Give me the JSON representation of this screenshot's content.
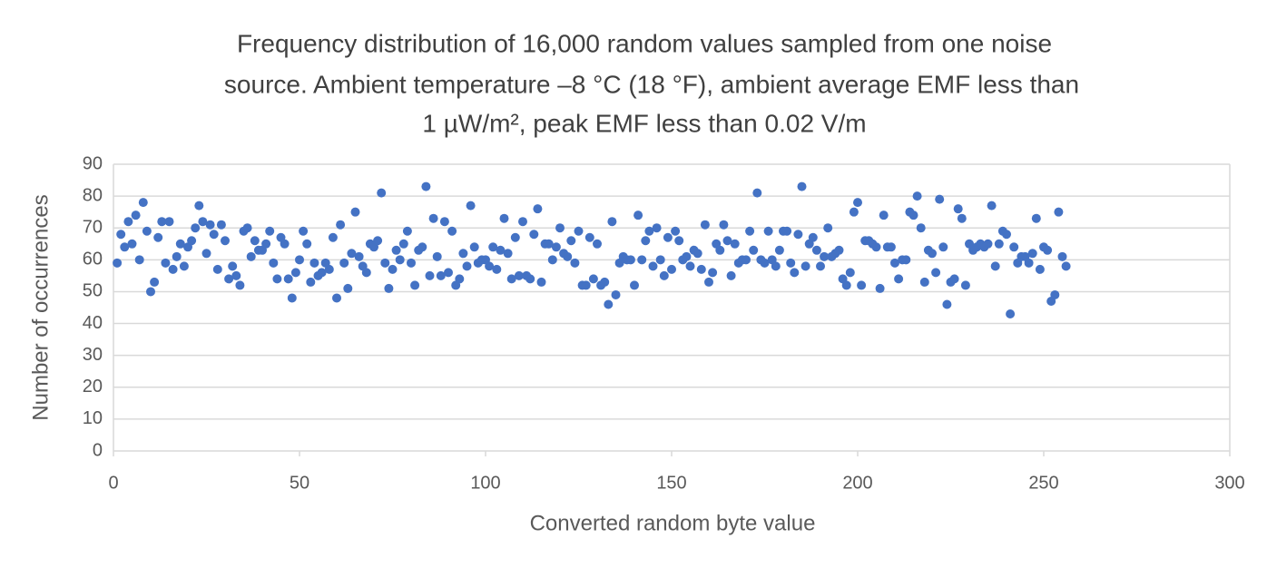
{
  "chart_data": {
    "type": "scatter",
    "title": [
      "Frequency distribution  of 16,000 random values sampled from one noise",
      "source. Ambient temperature –8 °C (18 °F), ambient average EMF less than",
      "1 µW/m², peak EMF less than 0.02 V/m"
    ],
    "x_label": "Converted random byte value",
    "y_label": "Number of occurrences",
    "color": "#4472c4",
    "grid": true,
    "xlim": [
      0,
      300
    ],
    "xticks": [
      0,
      50,
      100,
      150,
      200,
      250,
      300
    ],
    "ylim": [
      0,
      90
    ],
    "yticks": [
      0,
      10,
      20,
      30,
      40,
      50,
      60,
      70,
      80,
      90
    ],
    "x": [
      1,
      2,
      3,
      4,
      5,
      6,
      7,
      8,
      9,
      10,
      11,
      12,
      13,
      14,
      15,
      16,
      17,
      18,
      19,
      20,
      21,
      22,
      23,
      24,
      25,
      26,
      27,
      28,
      29,
      30,
      31,
      32,
      33,
      34,
      35,
      36,
      37,
      38,
      39,
      40,
      41,
      42,
      43,
      44,
      45,
      46,
      47,
      48,
      49,
      50,
      51,
      52,
      53,
      54,
      55,
      56,
      57,
      58,
      59,
      60,
      61,
      62,
      63,
      64,
      65,
      66,
      67,
      68,
      69,
      70,
      71,
      72,
      73,
      74,
      75,
      76,
      77,
      78,
      79,
      80,
      81,
      82,
      83,
      84,
      85,
      86,
      87,
      88,
      89,
      90,
      91,
      92,
      93,
      94,
      95,
      96,
      97,
      98,
      99,
      100,
      101,
      102,
      103,
      104,
      105,
      106,
      107,
      108,
      109,
      110,
      111,
      112,
      113,
      114,
      115,
      116,
      117,
      118,
      119,
      120,
      121,
      122,
      123,
      124,
      125,
      126,
      127,
      128,
      129,
      130,
      131,
      132,
      133,
      134,
      135,
      136,
      137,
      138,
      139,
      140,
      141,
      142,
      143,
      144,
      145,
      146,
      147,
      148,
      149,
      150,
      151,
      152,
      153,
      154,
      155,
      156,
      157,
      158,
      159,
      160,
      161,
      162,
      163,
      164,
      165,
      166,
      167,
      168,
      169,
      170,
      171,
      172,
      173,
      174,
      175,
      176,
      177,
      178,
      179,
      180,
      181,
      182,
      183,
      184,
      185,
      186,
      187,
      188,
      189,
      190,
      191,
      192,
      193,
      194,
      195,
      196,
      197,
      198,
      199,
      200,
      201,
      202,
      203,
      204,
      205,
      206,
      207,
      208,
      209,
      210,
      211,
      212,
      213,
      214,
      215,
      216,
      217,
      218,
      219,
      220,
      221,
      222,
      223,
      224,
      225,
      226,
      227,
      228,
      229,
      230,
      231,
      232,
      233,
      234,
      235,
      236,
      237,
      238,
      239,
      240,
      241,
      242,
      243,
      244,
      245,
      246,
      247,
      248,
      249,
      250,
      251,
      252,
      253,
      254,
      255,
      256
    ],
    "values": [
      59,
      68,
      64,
      72,
      65,
      74,
      60,
      78,
      69,
      50,
      53,
      67,
      72,
      59,
      72,
      57,
      61,
      65,
      58,
      64,
      66,
      70,
      77,
      72,
      62,
      71,
      68,
      57,
      71,
      66,
      54,
      58,
      55,
      52,
      69,
      70,
      61,
      66,
      63,
      63,
      65,
      69,
      59,
      54,
      67,
      65,
      54,
      48,
      56,
      60,
      69,
      65,
      53,
      59,
      55,
      56,
      59,
      57,
      67,
      48,
      71,
      59,
      51,
      62,
      75,
      61,
      58,
      56,
      65,
      64,
      66,
      81,
      59,
      51,
      57,
      63,
      60,
      65,
      69,
      59,
      52,
      63,
      64,
      83,
      55,
      73,
      61,
      55,
      72,
      56,
      69,
      52,
      54,
      62,
      58,
      77,
      64,
      59,
      60,
      60,
      58,
      64,
      57,
      63,
      73,
      62,
      54,
      67,
      55,
      72,
      55,
      54,
      68,
      76,
      53,
      65,
      65,
      60,
      64,
      70,
      62,
      61,
      66,
      59,
      69,
      52,
      52,
      67,
      54,
      65,
      52,
      53,
      46,
      72,
      49,
      59,
      61,
      60,
      60,
      52,
      74,
      60,
      66,
      69,
      58,
      70,
      60,
      55,
      67,
      57,
      69,
      66,
      60,
      61,
      58,
      63,
      62,
      57,
      71,
      53,
      56,
      65,
      63,
      71,
      66,
      55,
      65,
      59,
      60,
      60,
      69,
      63,
      81,
      60,
      59,
      69,
      60,
      58,
      63,
      69,
      69,
      59,
      56,
      68,
      83,
      58,
      65,
      67,
      63,
      58,
      61,
      70,
      61,
      62,
      63,
      54,
      52,
      56,
      75,
      78,
      52,
      66,
      66,
      65,
      64,
      51,
      74,
      64,
      64,
      59,
      54,
      60,
      60,
      75,
      74,
      80,
      70,
      53,
      63,
      62,
      56,
      79,
      64,
      46,
      53,
      54,
      76,
      73,
      52,
      65,
      63,
      64,
      65,
      64,
      65,
      77,
      58,
      65,
      69,
      68,
      43,
      64,
      59,
      61,
      61,
      59,
      62,
      73,
      57,
      64,
      63,
      47,
      49,
      75,
      61,
      58
    ]
  }
}
